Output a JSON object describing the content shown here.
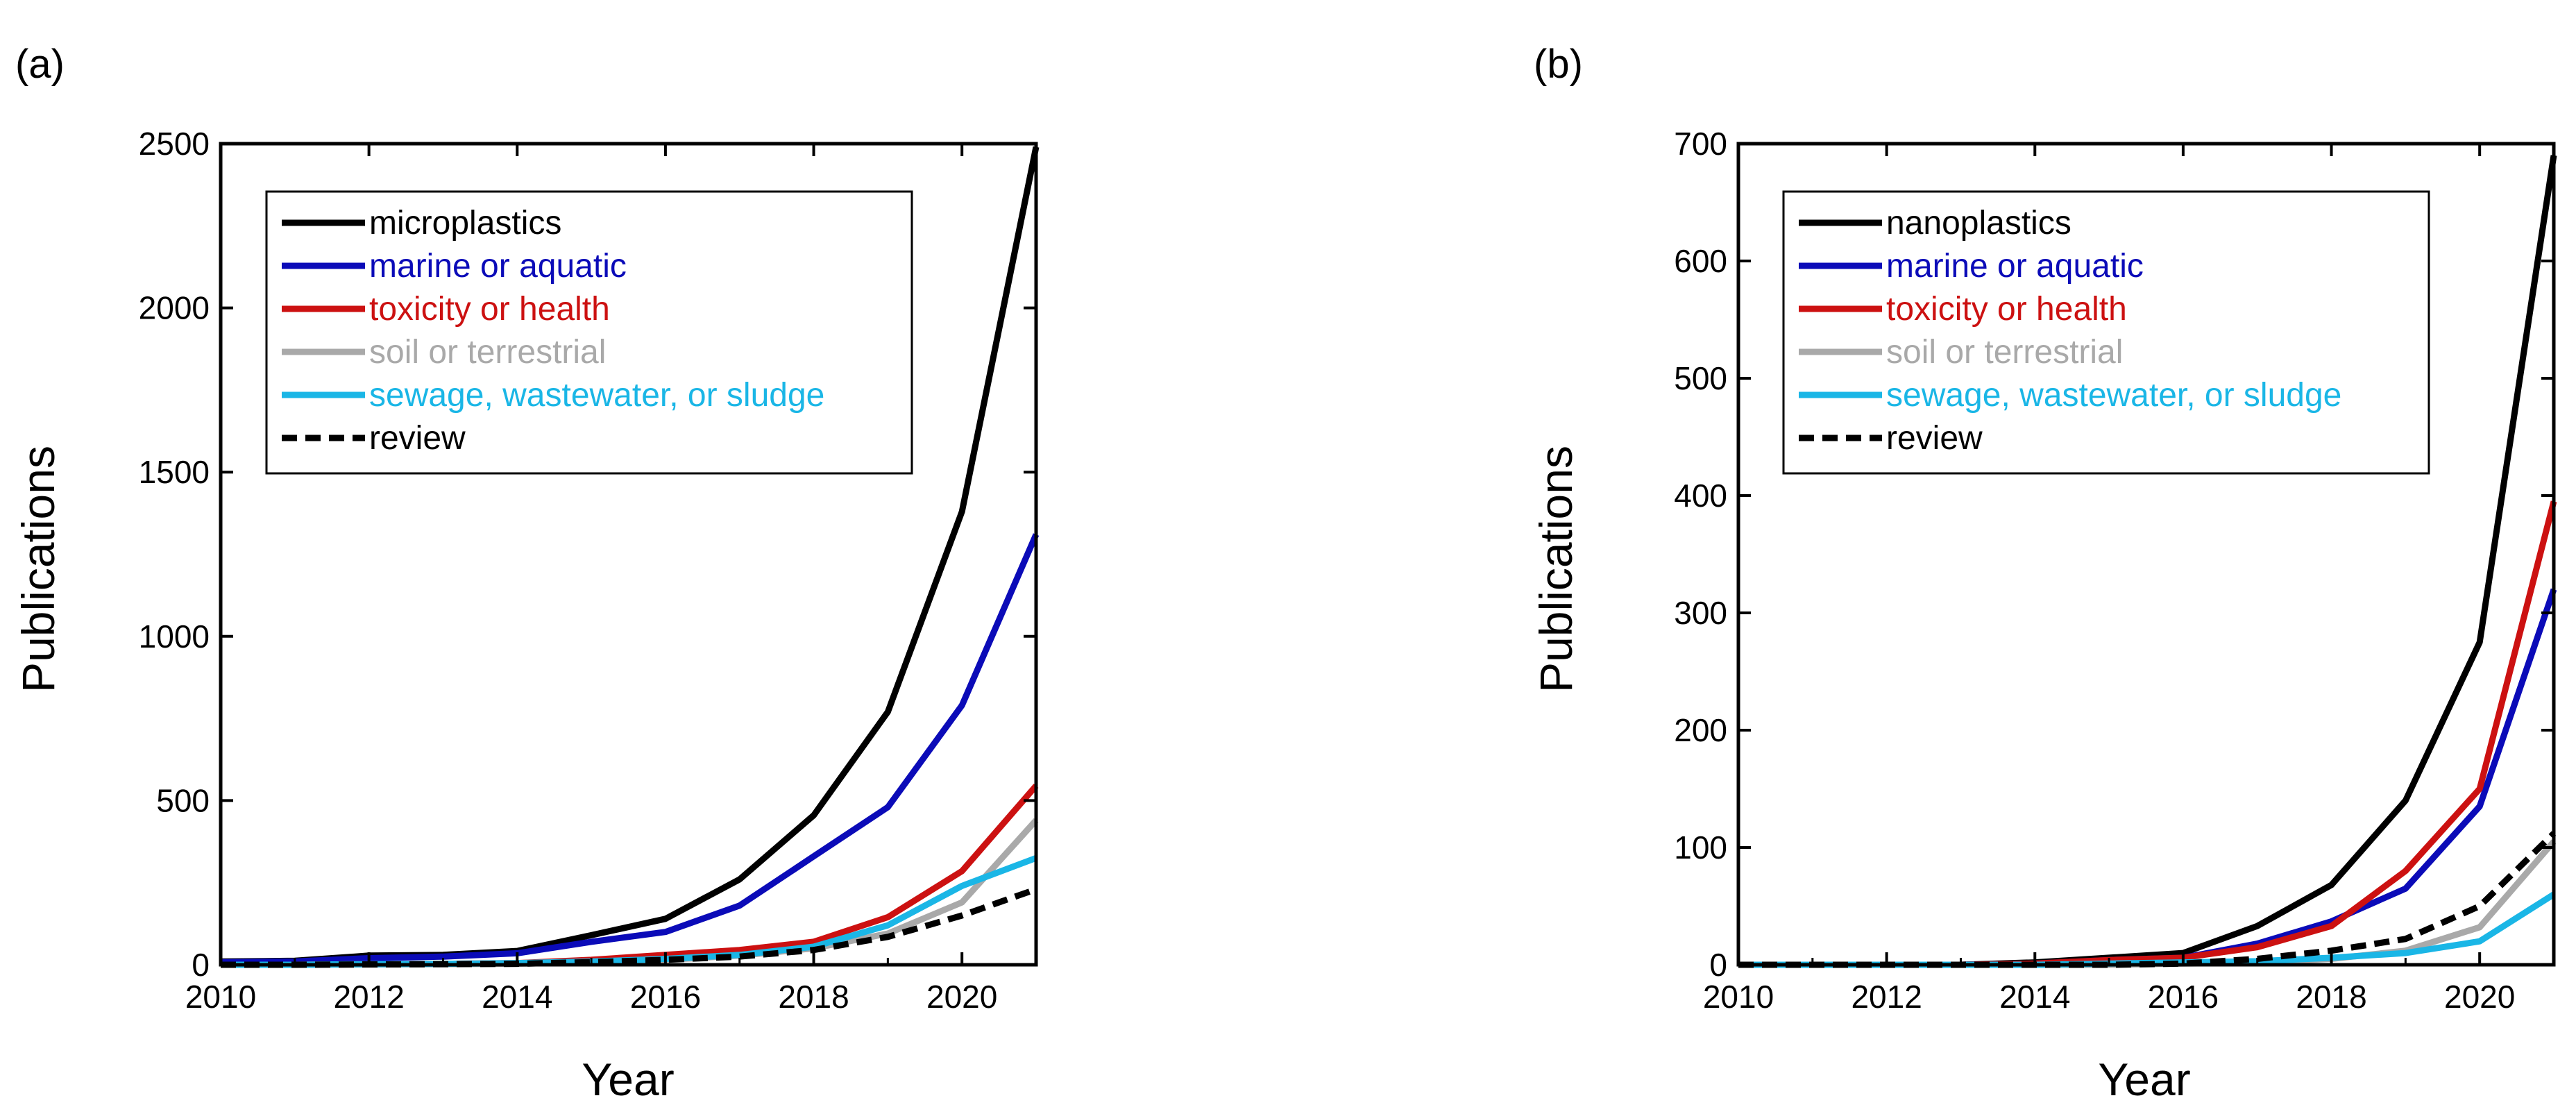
{
  "chart_data": [
    {
      "type": "line",
      "panel_label": "(a)",
      "xlabel": "Year",
      "ylabel": "Publications",
      "xlim": [
        2010,
        2021
      ],
      "ylim": [
        0,
        2500
      ],
      "xticks": [
        2010,
        2012,
        2014,
        2016,
        2018,
        2020
      ],
      "yticks": [
        0,
        500,
        1000,
        1500,
        2000,
        2500
      ],
      "legend_position": "top-left",
      "x": [
        2010,
        2011,
        2012,
        2013,
        2014,
        2015,
        2016,
        2017,
        2018,
        2019,
        2020,
        2021
      ],
      "series": [
        {
          "name": "microplastics",
          "color": "#000000",
          "dash": false,
          "values": [
            10,
            12,
            28,
            30,
            42,
            90,
            140,
            260,
            455,
            770,
            1380,
            2490
          ]
        },
        {
          "name": "marine or aquatic",
          "color": "#0b0bb8",
          "dash": false,
          "values": [
            8,
            10,
            20,
            25,
            35,
            70,
            100,
            180,
            330,
            480,
            790,
            1310
          ]
        },
        {
          "name": "toxicity or health",
          "color": "#cc1111",
          "dash": false,
          "values": [
            0,
            0,
            2,
            3,
            5,
            15,
            30,
            45,
            70,
            145,
            285,
            545
          ]
        },
        {
          "name": "soil or terrestrial",
          "color": "#a9a9a9",
          "dash": false,
          "values": [
            0,
            0,
            1,
            2,
            3,
            8,
            15,
            28,
            50,
            95,
            190,
            440
          ]
        },
        {
          "name": "sewage, wastewater, or sludge",
          "color": "#1ab6e6",
          "dash": false,
          "values": [
            0,
            0,
            2,
            3,
            5,
            10,
            18,
            30,
            55,
            120,
            240,
            325
          ]
        },
        {
          "name": "review",
          "color": "#000000",
          "dash": true,
          "values": [
            0,
            0,
            1,
            2,
            3,
            8,
            15,
            25,
            45,
            85,
            150,
            230
          ]
        }
      ]
    },
    {
      "type": "line",
      "panel_label": "(b)",
      "xlabel": "Year",
      "ylabel": "Publications",
      "xlim": [
        2010,
        2021
      ],
      "ylim": [
        0,
        700
      ],
      "xticks": [
        2010,
        2012,
        2014,
        2016,
        2018,
        2020
      ],
      "yticks": [
        0,
        100,
        200,
        300,
        400,
        500,
        600,
        700
      ],
      "legend_position": "top-left",
      "x": [
        2010,
        2011,
        2012,
        2013,
        2014,
        2015,
        2016,
        2017,
        2018,
        2019,
        2020,
        2021
      ],
      "series": [
        {
          "name": "nanoplastics",
          "color": "#000000",
          "dash": false,
          "values": [
            0,
            0,
            0,
            0,
            2,
            6,
            10,
            33,
            68,
            140,
            275,
            690
          ]
        },
        {
          "name": "marine or aquatic",
          "color": "#0b0bb8",
          "dash": false,
          "values": [
            0,
            0,
            0,
            0,
            1,
            4,
            6,
            18,
            37,
            65,
            135,
            320
          ]
        },
        {
          "name": "toxicity or health",
          "color": "#cc1111",
          "dash": false,
          "values": [
            0,
            0,
            0,
            0,
            1,
            4,
            6,
            15,
            33,
            80,
            150,
            395
          ]
        },
        {
          "name": "soil or terrestrial",
          "color": "#a9a9a9",
          "dash": false,
          "values": [
            0,
            0,
            0,
            0,
            0,
            0,
            1,
            2,
            5,
            12,
            32,
            105
          ]
        },
        {
          "name": "sewage, wastewater, or sludge",
          "color": "#1ab6e6",
          "dash": false,
          "values": [
            0,
            0,
            0,
            0,
            0,
            1,
            2,
            3,
            6,
            10,
            20,
            60
          ]
        },
        {
          "name": "review",
          "color": "#000000",
          "dash": true,
          "values": [
            0,
            0,
            0,
            0,
            0,
            0,
            1,
            5,
            12,
            22,
            50,
            112
          ]
        }
      ]
    }
  ]
}
